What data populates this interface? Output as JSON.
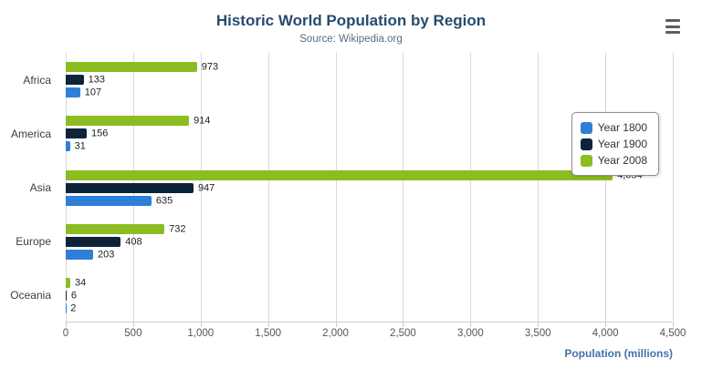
{
  "title": "Historic World Population by Region",
  "subtitle": "Source: Wikipedia.org",
  "icons": {
    "menu": "hamburger-menu"
  },
  "chart_data": {
    "type": "bar",
    "orientation": "horizontal",
    "title": "Historic World Population by Region",
    "subtitle": "Source: Wikipedia.org",
    "categories": [
      "Africa",
      "America",
      "Asia",
      "Europe",
      "Oceania"
    ],
    "series": [
      {
        "name": "Year 1800",
        "color": "#2f7ed8",
        "values": [
          107,
          31,
          635,
          203,
          2
        ]
      },
      {
        "name": "Year 1900",
        "color": "#0d233a",
        "values": [
          133,
          156,
          947,
          408,
          6
        ]
      },
      {
        "name": "Year 2008",
        "color": "#8bbc21",
        "values": [
          973,
          914,
          4054,
          732,
          34
        ]
      }
    ],
    "xlabel": "Population (millions)",
    "ylabel": "",
    "xlim": [
      0,
      4500
    ],
    "ticks": [
      0,
      500,
      1000,
      1500,
      2000,
      2500,
      3000,
      3500,
      4000,
      4500
    ],
    "tick_labels": [
      "0",
      "500",
      "1,000",
      "1,500",
      "2,000",
      "2,500",
      "3,000",
      "3,500",
      "4,000",
      "4,500"
    ],
    "grid": true,
    "legend_position": "right"
  }
}
